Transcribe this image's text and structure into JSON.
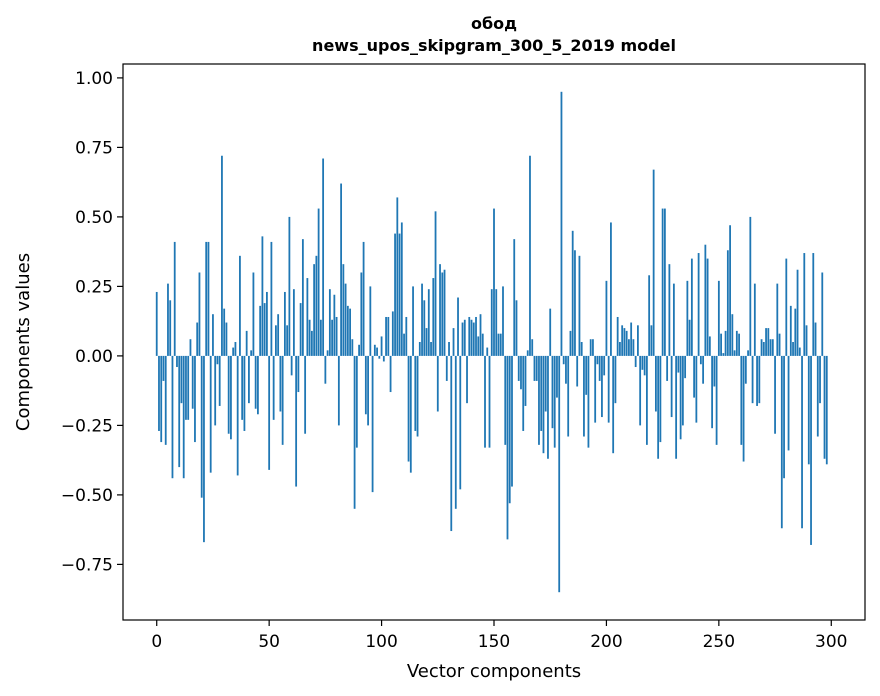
{
  "chart_data": {
    "type": "bar",
    "title_line1": "обод",
    "title_line2": "news_upos_skipgram_300_5_2019 model",
    "xlabel": "Vector components",
    "ylabel": "Components values",
    "xlim": [
      -15,
      315
    ],
    "ylim": [
      -0.95,
      1.05
    ],
    "xticks": [
      0,
      50,
      100,
      150,
      200,
      250,
      300
    ],
    "xtick_labels": [
      "0",
      "50",
      "100",
      "150",
      "200",
      "250",
      "300"
    ],
    "yticks": [
      1.0,
      0.75,
      0.5,
      0.25,
      0.0,
      -0.25,
      -0.5,
      -0.75
    ],
    "ytick_labels": [
      "1.00",
      "0.75",
      "0.50",
      "0.25",
      "0.00",
      "−0.25",
      "−0.50",
      "−0.75"
    ],
    "color": "#1f77b4",
    "values": [
      0.23,
      -0.27,
      -0.31,
      -0.09,
      -0.32,
      0.26,
      0.2,
      -0.44,
      0.41,
      -0.04,
      -0.4,
      -0.17,
      -0.44,
      -0.23,
      -0.23,
      0.06,
      -0.19,
      -0.31,
      0.12,
      0.3,
      -0.51,
      -0.67,
      0.41,
      0.41,
      -0.42,
      0.15,
      -0.25,
      -0.03,
      -0.18,
      0.72,
      0.17,
      0.12,
      -0.28,
      -0.3,
      0.03,
      0.05,
      -0.43,
      0.36,
      -0.23,
      -0.27,
      0.09,
      -0.17,
      0.02,
      0.3,
      -0.19,
      -0.21,
      0.18,
      0.43,
      0.19,
      0.23,
      -0.41,
      0.41,
      -0.23,
      0.11,
      0.15,
      -0.2,
      -0.32,
      0.23,
      0.11,
      0.5,
      -0.07,
      0.24,
      -0.47,
      -0.13,
      0.19,
      0.42,
      -0.28,
      0.28,
      0.13,
      0.09,
      0.33,
      0.36,
      0.53,
      0.13,
      0.71,
      -0.1,
      0.02,
      0.24,
      0.13,
      0.22,
      0.14,
      -0.25,
      0.62,
      0.33,
      0.26,
      0.18,
      0.17,
      0.06,
      -0.55,
      -0.33,
      0.04,
      0.3,
      0.41,
      -0.21,
      -0.25,
      0.25,
      -0.49,
      0.04,
      0.03,
      -0.01,
      0.07,
      -0.02,
      0.14,
      0.14,
      -0.13,
      0.16,
      0.44,
      0.57,
      0.44,
      0.48,
      0.08,
      0.14,
      -0.38,
      -0.42,
      0.25,
      -0.27,
      -0.29,
      0.05,
      0.26,
      0.2,
      0.1,
      0.24,
      0.05,
      0.28,
      0.52,
      -0.2,
      0.33,
      0.3,
      0.31,
      -0.09,
      0.05,
      -0.63,
      0.1,
      -0.55,
      0.21,
      -0.48,
      0.12,
      0.13,
      -0.17,
      0.14,
      0.13,
      0.12,
      0.14,
      0.07,
      0.15,
      0.08,
      -0.33,
      0.03,
      -0.33,
      0.24,
      0.53,
      0.24,
      0.08,
      0.08,
      0.25,
      -0.32,
      -0.66,
      -0.53,
      -0.47,
      0.42,
      0.2,
      -0.09,
      -0.12,
      -0.27,
      -0.18,
      0.02,
      0.72,
      0.06,
      -0.09,
      -0.09,
      -0.32,
      -0.27,
      -0.35,
      -0.2,
      -0.37,
      0.17,
      -0.26,
      -0.33,
      -0.15,
      -0.85,
      0.95,
      -0.03,
      -0.1,
      -0.29,
      0.09,
      0.45,
      0.38,
      -0.11,
      0.36,
      0.05,
      -0.29,
      -0.14,
      -0.33,
      0.06,
      0.06,
      -0.24,
      -0.03,
      -0.09,
      -0.22,
      -0.07,
      0.27,
      -0.24,
      0.48,
      -0.35,
      -0.17,
      0.14,
      0.05,
      0.11,
      0.1,
      0.09,
      0.06,
      0.12,
      0.06,
      -0.04,
      0.11,
      -0.25,
      -0.05,
      -0.07,
      -0.32,
      0.29,
      0.11,
      0.67,
      -0.2,
      -0.37,
      -0.31,
      0.53,
      0.53,
      -0.09,
      0.33,
      -0.22,
      0.26,
      -0.37,
      -0.06,
      -0.3,
      -0.25,
      -0.08,
      0.27,
      0.13,
      0.35,
      -0.15,
      -0.24,
      0.37,
      -0.03,
      -0.1,
      0.4,
      0.35,
      0.07,
      -0.26,
      -0.11,
      -0.32,
      0.27,
      0.08,
      0.01,
      0.09,
      0.38,
      0.47,
      0.15,
      0.02,
      0.09,
      0.08,
      -0.32,
      -0.38,
      -0.1,
      0.02,
      0.5,
      -0.17,
      0.26,
      -0.18,
      -0.17,
      0.06,
      0.05,
      0.1,
      0.1,
      0.06,
      0.06,
      -0.28,
      0.26,
      0.08,
      -0.62,
      -0.44,
      0.35,
      -0.34,
      0.18,
      0.05,
      0.17,
      0.31,
      0.03,
      -0.62,
      0.37,
      0.11,
      -0.39,
      -0.68,
      0.37,
      0.12,
      -0.29,
      -0.17,
      0.3,
      -0.37,
      -0.39
    ]
  }
}
